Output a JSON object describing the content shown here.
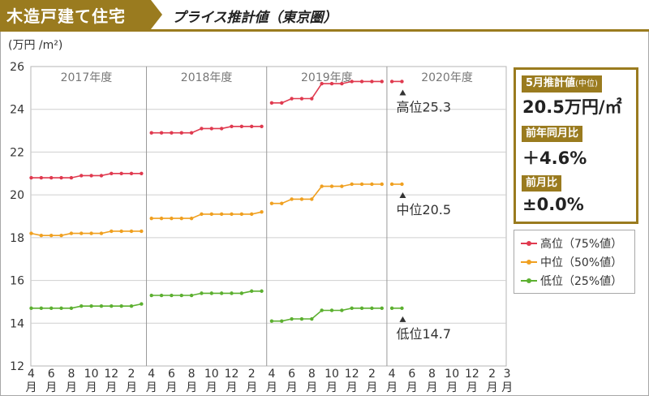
{
  "header": {
    "title": "木造戸建て住宅",
    "subtitle": "プライス推計値（東京圏）"
  },
  "panel": {
    "estimate_label": "5月推計値",
    "estimate_label_small": "(中位)",
    "estimate_value": "20.5万円/㎡",
    "yoy_label": "前年同月比",
    "yoy_value": "＋4.6%",
    "mom_label": "前月比",
    "mom_value": "±0.0%"
  },
  "chart_data": {
    "type": "line",
    "ylabel": "(万円 /m²)",
    "ylim": [
      12,
      26
    ],
    "yticks": [
      "12",
      "14",
      "16",
      "18",
      "20",
      "22",
      "24",
      "26"
    ],
    "grid": true,
    "year_labels": [
      "2017年度",
      "2018年度",
      "2019年度",
      "2020年度"
    ],
    "x": [
      "4月",
      "5月",
      "6月",
      "7月",
      "8月",
      "9月",
      "10月",
      "11月",
      "12月",
      "1月",
      "2月",
      "3月",
      "4月",
      "5月",
      "6月",
      "7月",
      "8月",
      "9月",
      "10月",
      "11月",
      "12月",
      "1月",
      "2月",
      "3月",
      "4月",
      "5月",
      "6月",
      "7月",
      "8月",
      "9月",
      "10月",
      "11月",
      "12月",
      "1月",
      "2月",
      "3月",
      "4月",
      "5月",
      "6月",
      "7月",
      "8月",
      "9月",
      "10月",
      "11月",
      "12月",
      "1月",
      "2月",
      "3月"
    ],
    "xtick_labels": [
      "4",
      "6",
      "8",
      "10",
      "12",
      "2",
      "4",
      "6",
      "8",
      "10",
      "12",
      "2",
      "4",
      "6",
      "8",
      "10",
      "12",
      "2",
      "4",
      "6",
      "8",
      "10",
      "12",
      "2",
      "3"
    ],
    "xtick_unit": "月",
    "series": [
      {
        "name": "高位（75%値）",
        "color": "#e03a4f",
        "segments": [
          [
            20.8,
            20.8,
            20.8,
            20.8,
            20.8,
            20.9,
            20.9,
            20.9,
            21.0,
            21.0,
            21.0,
            21.0
          ],
          [
            22.9,
            22.9,
            22.9,
            22.9,
            22.9,
            23.1,
            23.1,
            23.1,
            23.2,
            23.2,
            23.2,
            23.2
          ],
          [
            24.3,
            24.3,
            24.5,
            24.5,
            24.5,
            25.2,
            25.2,
            25.2,
            25.3,
            25.3,
            25.3,
            25.3
          ],
          [
            25.3,
            25.3
          ]
        ]
      },
      {
        "name": "中位（50%値）",
        "color": "#f0a020",
        "segments": [
          [
            18.2,
            18.1,
            18.1,
            18.1,
            18.2,
            18.2,
            18.2,
            18.2,
            18.3,
            18.3,
            18.3,
            18.3
          ],
          [
            18.9,
            18.9,
            18.9,
            18.9,
            18.9,
            19.1,
            19.1,
            19.1,
            19.1,
            19.1,
            19.1,
            19.2
          ],
          [
            19.6,
            19.6,
            19.8,
            19.8,
            19.8,
            20.4,
            20.4,
            20.4,
            20.5,
            20.5,
            20.5,
            20.5
          ],
          [
            20.5,
            20.5
          ]
        ]
      },
      {
        "name": "低位（25%値）",
        "color": "#5cb030",
        "segments": [
          [
            14.7,
            14.7,
            14.7,
            14.7,
            14.7,
            14.8,
            14.8,
            14.8,
            14.8,
            14.8,
            14.8,
            14.9
          ],
          [
            15.3,
            15.3,
            15.3,
            15.3,
            15.3,
            15.4,
            15.4,
            15.4,
            15.4,
            15.4,
            15.5,
            15.5
          ],
          [
            14.1,
            14.1,
            14.2,
            14.2,
            14.2,
            14.6,
            14.6,
            14.6,
            14.7,
            14.7,
            14.7,
            14.7
          ],
          [
            14.7,
            14.7
          ]
        ]
      }
    ],
    "annotations": [
      {
        "text": "高位25.3",
        "value": 25.3
      },
      {
        "text": "中位20.5",
        "value": 20.5
      },
      {
        "text": "低位14.7",
        "value": 14.7
      }
    ]
  }
}
